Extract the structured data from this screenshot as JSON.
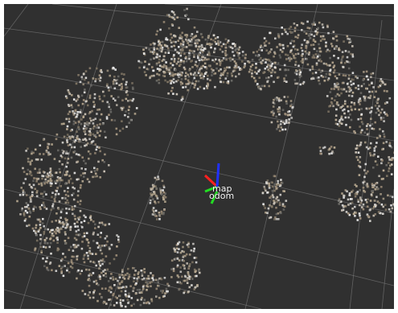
{
  "viewer": {
    "background_color": "#303030",
    "grid_color": "#8a8a8a",
    "frames": [
      {
        "name": "map"
      },
      {
        "name": "odom"
      }
    ],
    "axis_colors": {
      "x": "#ff2020",
      "y": "#22dd22",
      "z": "#2030ff"
    },
    "point_palette": [
      "#b9aa92",
      "#9d8d78",
      "#c8c0b4",
      "#7f7564",
      "#d8d6d2",
      "#6b6a66",
      "#a89b85",
      "#e6e6e6"
    ]
  }
}
